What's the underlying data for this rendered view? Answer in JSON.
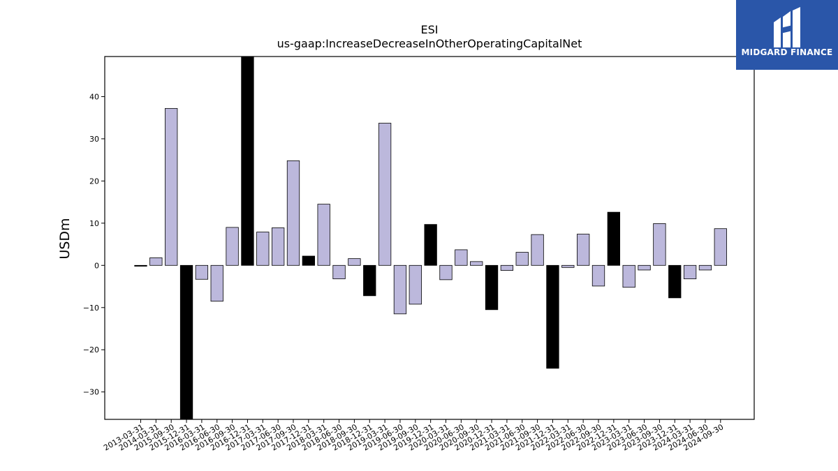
{
  "chart_data": {
    "type": "bar",
    "title": "ESI",
    "subtitle": "us-gaap:IncreaseDecreaseInOtherOperatingCapitalNet",
    "xlabel": "",
    "ylabel": "USDm",
    "ylim": [
      -36.5,
      49.5
    ],
    "yticks": [
      -30,
      -20,
      -10,
      0,
      10,
      20,
      30,
      40
    ],
    "grid": false,
    "colors": {
      "annual": "#000000",
      "quarter": "#bcb8dc",
      "edge": "#000000"
    },
    "categories": [
      "2013-03-31",
      "2014-03-31",
      "2015-09-30",
      "2015-12-31",
      "2016-03-31",
      "2016-06-30",
      "2016-09-30",
      "2016-12-31",
      "2017-03-31",
      "2017-06-30",
      "2017-09-30",
      "2017-12-31",
      "2018-03-31",
      "2018-06-30",
      "2018-09-30",
      "2018-12-31",
      "2019-03-31",
      "2019-06-30",
      "2019-09-30",
      "2019-12-31",
      "2020-03-31",
      "2020-06-30",
      "2020-09-30",
      "2020-12-31",
      "2021-03-31",
      "2021-06-30",
      "2021-09-30",
      "2021-12-31",
      "2022-03-31",
      "2022-06-30",
      "2022-09-30",
      "2022-12-31",
      "2023-03-31",
      "2023-06-30",
      "2023-09-30",
      "2023-12-31",
      "2024-03-31",
      "2024-06-30",
      "2024-09-30"
    ],
    "values": [
      -0.2,
      1.8,
      37.2,
      -36.5,
      -3.3,
      -8.5,
      9.0,
      49.5,
      7.9,
      8.9,
      24.8,
      2.2,
      14.5,
      -3.2,
      1.6,
      -7.2,
      33.7,
      -11.5,
      -9.2,
      9.7,
      -3.4,
      3.7,
      0.9,
      -10.5,
      -1.2,
      3.1,
      7.3,
      -24.4,
      -0.5,
      7.4,
      -4.9,
      12.6,
      -5.2,
      -1.1,
      9.9,
      -7.7,
      -3.2,
      -1.1,
      8.7
    ],
    "annual": [
      true,
      false,
      false,
      true,
      false,
      false,
      false,
      true,
      false,
      false,
      false,
      true,
      false,
      false,
      false,
      true,
      false,
      false,
      false,
      true,
      false,
      false,
      false,
      true,
      false,
      false,
      false,
      true,
      false,
      false,
      false,
      true,
      false,
      false,
      false,
      true,
      false,
      false,
      false
    ]
  },
  "logo": {
    "name": "MIDGARD FINANCE",
    "background": "#2a56a9"
  }
}
